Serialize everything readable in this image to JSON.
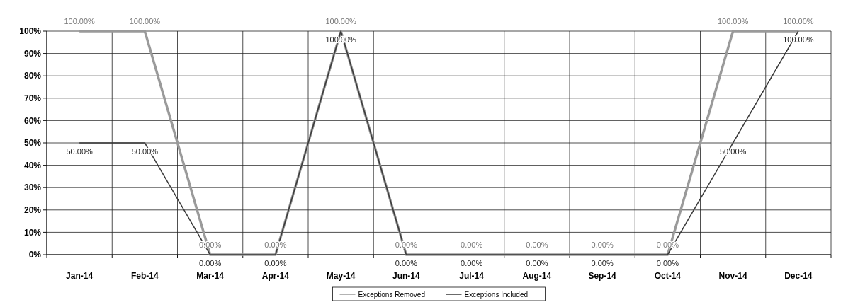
{
  "chart_data": {
    "type": "line",
    "categories": [
      "Jan-14",
      "Feb-14",
      "Mar-14",
      "Apr-14",
      "May-14",
      "Jun-14",
      "Jul-14",
      "Aug-14",
      "Sep-14",
      "Oct-14",
      "Nov-14",
      "Dec-14"
    ],
    "series": [
      {
        "name": "Exceptions Removed",
        "color": "#9a9a9a",
        "values": [
          100,
          100,
          0,
          0,
          100,
          0,
          0,
          0,
          0,
          0,
          100,
          100
        ],
        "value_labels": [
          "100.00%",
          "100.00%",
          "0.00%",
          "0.00%",
          "100.00%",
          "0.00%",
          "0.00%",
          "0.00%",
          "0.00%",
          "0.00%",
          "100.00%",
          "100.00%"
        ]
      },
      {
        "name": "Exceptions Included",
        "color": "#3a3a3a",
        "values": [
          50,
          50,
          0,
          0,
          100,
          0,
          0,
          0,
          0,
          0,
          50,
          100
        ],
        "value_labels": [
          "50.00%",
          "50.00%",
          "0.00%",
          "0.00%",
          "100.00%",
          "0.00%",
          "0.00%",
          "0.00%",
          "0.00%",
          "0.00%",
          "50.00%",
          "100.00%"
        ]
      }
    ],
    "ylim": [
      0,
      100
    ],
    "yticks": [
      {
        "value": 0,
        "label": "0%"
      },
      {
        "value": 10,
        "label": "10%"
      },
      {
        "value": 20,
        "label": "20%"
      },
      {
        "value": 30,
        "label": "30%"
      },
      {
        "value": 40,
        "label": "40%"
      },
      {
        "value": 50,
        "label": "50%"
      },
      {
        "value": 60,
        "label": "60%"
      },
      {
        "value": 70,
        "label": "70%"
      },
      {
        "value": 80,
        "label": "80%"
      },
      {
        "value": 90,
        "label": "90%"
      },
      {
        "value": 100,
        "label": "100%"
      }
    ],
    "grid": true,
    "legend": "bottom",
    "marker": "none",
    "line_style": "solid"
  }
}
